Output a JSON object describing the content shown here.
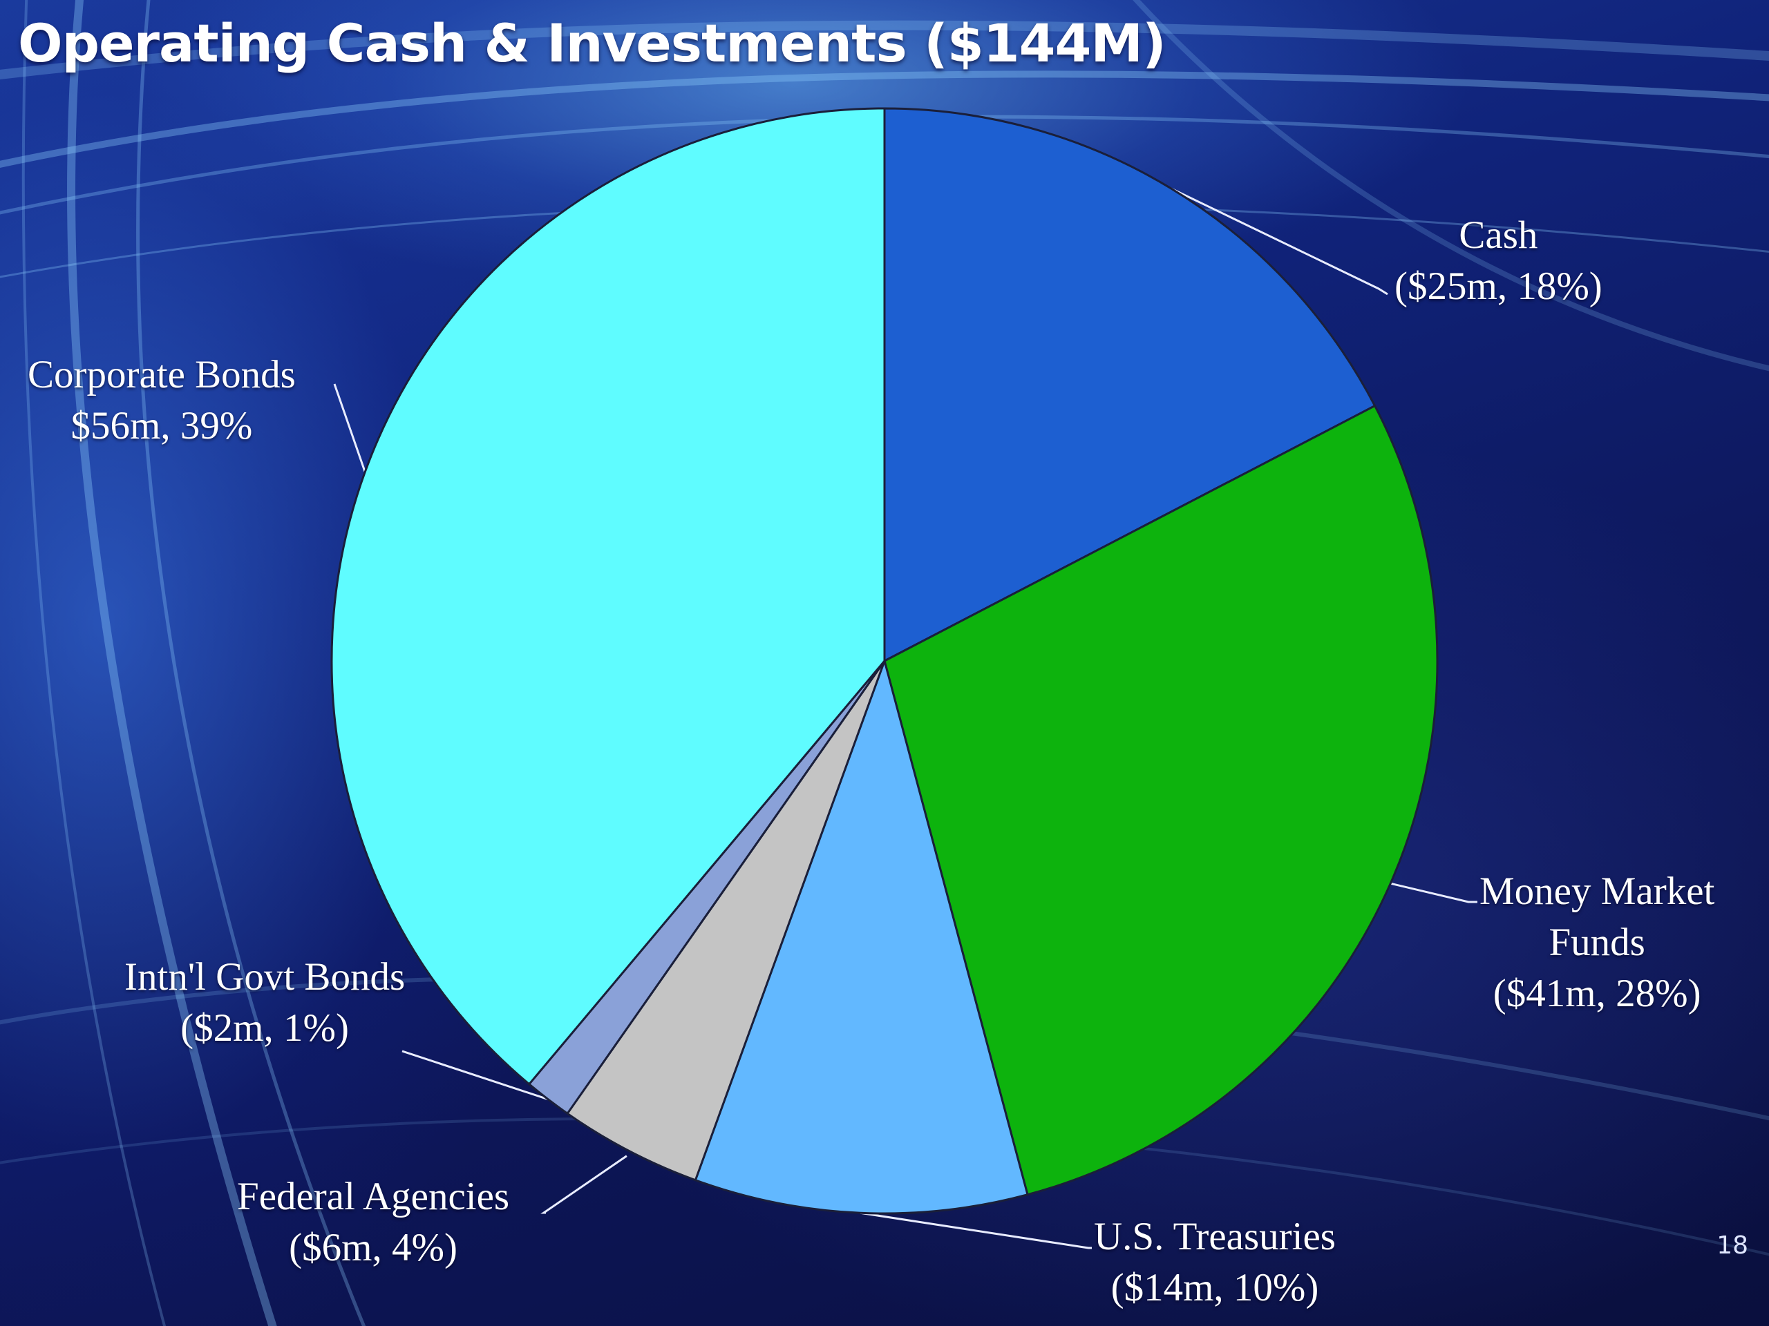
{
  "slide": {
    "title": "Operating Cash & Investments ($144M)",
    "page_number": "18"
  },
  "chart_data": {
    "type": "pie",
    "title": "Operating Cash & Investments ($144M)",
    "total": 144,
    "unit": "$m",
    "start": "12 o'clock",
    "direction": "clockwise",
    "slices": [
      {
        "name": "Cash",
        "value": 25,
        "percent": 18,
        "color": "#1d5fd1",
        "label_lines": [
          "Cash",
          "($25m, 18%)"
        ]
      },
      {
        "name": "Money Market Funds",
        "value": 41,
        "percent": 28,
        "color": "#0db30d",
        "label_lines": [
          "Money Market",
          "Funds",
          "($41m, 28%)"
        ]
      },
      {
        "name": "U.S. Treasuries",
        "value": 14,
        "percent": 10,
        "color": "#62b8ff",
        "label_lines": [
          "U.S. Treasuries",
          "($14m, 10%)"
        ]
      },
      {
        "name": "Federal Agencies",
        "value": 6,
        "percent": 4,
        "color": "#c4c4c4",
        "label_lines": [
          "Federal Agencies",
          "($6m, 4%)"
        ]
      },
      {
        "name": "Intn'l Govt Bonds",
        "value": 2,
        "percent": 1,
        "color": "#8aa1d8",
        "label_lines": [
          "Intn'l Govt Bonds",
          "($2m, 1%)"
        ]
      },
      {
        "name": "Corporate Bonds",
        "value": 56,
        "percent": 39,
        "color": "#5ffcff",
        "label_lines": [
          "Corporate Bonds",
          "$56m, 39%"
        ]
      }
    ]
  }
}
